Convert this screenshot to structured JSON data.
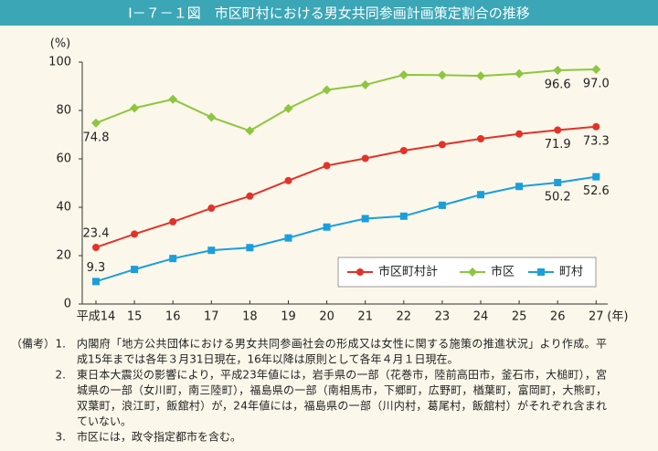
{
  "chart_data": {
    "type": "line",
    "title": "Ⅰ－７－１図　市区町村における男女共同参画計画策定割合の推移",
    "y_label": "(%)",
    "x_unit": "(年)",
    "categories": [
      "平成14",
      "15",
      "16",
      "17",
      "18",
      "19",
      "20",
      "21",
      "22",
      "23",
      "24",
      "25",
      "26",
      "27"
    ],
    "ylim": [
      0,
      100
    ],
    "yticks": [
      0,
      20,
      40,
      60,
      80,
      100
    ],
    "series": [
      {
        "name": "市区町村計",
        "color": "#e2332a",
        "marker": "circle",
        "values": [
          23.4,
          28.9,
          34.0,
          39.6,
          44.6,
          51.0,
          57.2,
          60.2,
          63.4,
          65.9,
          68.3,
          70.3,
          71.9,
          73.3
        ],
        "value_labels": [
          "23.4",
          null,
          null,
          null,
          null,
          null,
          null,
          null,
          null,
          null,
          null,
          null,
          "71.9",
          "73.3"
        ]
      },
      {
        "name": "市区",
        "color": "#8dc63f",
        "marker": "diamond",
        "values": [
          74.8,
          81.0,
          84.6,
          77.2,
          71.6,
          80.8,
          88.5,
          90.6,
          94.7,
          94.6,
          94.3,
          95.2,
          96.6,
          97.0
        ],
        "value_labels": [
          "74.8",
          null,
          null,
          null,
          null,
          null,
          null,
          null,
          null,
          null,
          null,
          null,
          "96.6",
          "97.0"
        ]
      },
      {
        "name": "町村",
        "color": "#1a9fdc",
        "marker": "square",
        "values": [
          9.3,
          14.3,
          18.8,
          22.2,
          23.3,
          27.3,
          31.8,
          35.3,
          36.3,
          40.8,
          45.2,
          48.6,
          50.2,
          52.6
        ],
        "value_labels": [
          "9.3",
          null,
          null,
          null,
          null,
          null,
          null,
          null,
          null,
          null,
          null,
          null,
          "50.2",
          "52.6"
        ]
      }
    ]
  },
  "notes": {
    "label": "（備考）",
    "items": [
      {
        "number": "1.",
        "lines": [
          "内閣府「地方公共団体における男女共同参画社会の形成又は女性に関する施策の推進状況」より作成。平",
          "成15年までは各年３月31日現在，16年以降は原則として各年４月１日現在。"
        ]
      },
      {
        "number": "2.",
        "lines": [
          "東日本大震災の影響により，平成23年値には，岩手県の一部（花巻市，陸前高田市，釜石市，大槌町），宮",
          "城県の一部（女川町，南三陸町），福島県の一部（南相馬市，下郷町，広野町，楢葉町，富岡町，大熊町，",
          "双葉町，浪江町，飯舘村）が，24年値には，福島県の一部（川内村，葛尾村，飯舘村）がそれぞれ含まれ",
          "ていない。"
        ]
      },
      {
        "number": "3.",
        "lines": [
          "市区には，政令指定都市を含む。"
        ]
      }
    ]
  }
}
